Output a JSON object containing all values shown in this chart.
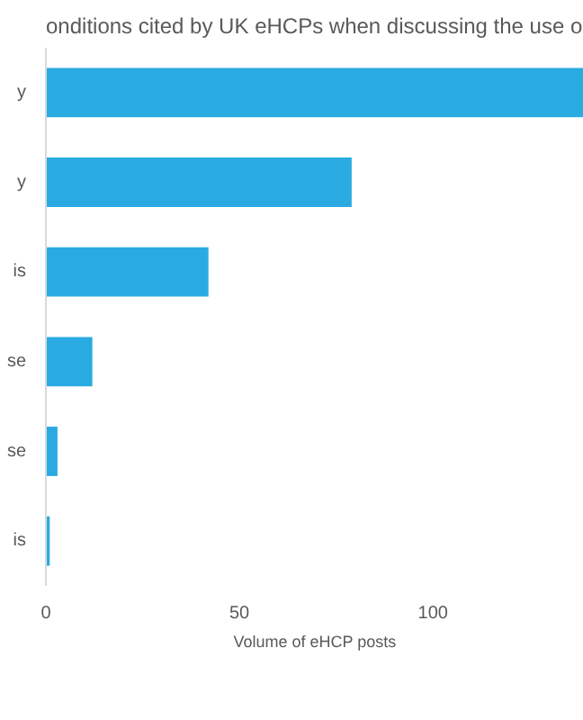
{
  "chart_data": {
    "type": "bar",
    "orientation": "horizontal",
    "title": "onditions cited by UK eHCPs when discussing the use o",
    "xlabel": "Volume of eHCP posts",
    "categories": [
      "y",
      "y",
      "is",
      "se",
      "se",
      "is"
    ],
    "values": [
      139,
      79,
      42,
      12,
      3,
      1
    ],
    "color": "#29abe2",
    "xlim": [
      0,
      139
    ],
    "xticks": [
      0,
      50,
      100
    ],
    "grid": false
  }
}
